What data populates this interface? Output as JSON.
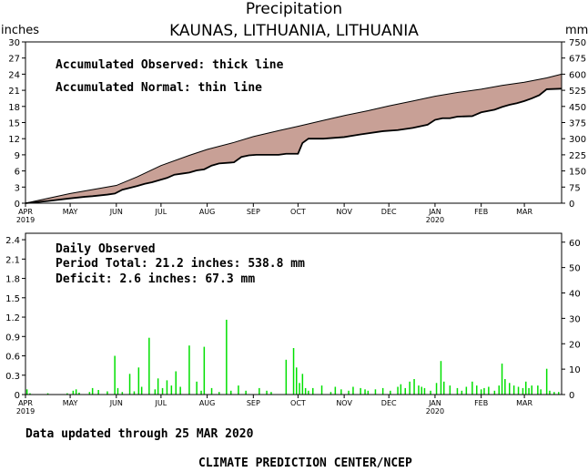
{
  "header": {
    "title": "Precipitation",
    "location": "KAUNAS,  LITHUANIA,  LITHUANIA",
    "left_unit": "inches",
    "right_unit": "mm"
  },
  "top_panel": {
    "legend_observed": "Accumulated Observed: thick line",
    "legend_normal": "Accumulated Normal: thin line"
  },
  "bottom_panel": {
    "heading": "Daily Observed",
    "period_total": "Period Total:    21.2 inches:    538.8 mm",
    "deficit": "Deficit:      2.6 inches:    67.3 mm"
  },
  "footer": {
    "updated": "Data updated through 25 MAR 2020",
    "credit": "CLIMATE PREDICTION CENTER/NCEP"
  },
  "colors": {
    "fill": "#c8a096",
    "bars": "#00e000",
    "axes": "#000000"
  },
  "chart_data": [
    {
      "type": "area",
      "x_axis": {
        "months": [
          "APR",
          "MAY",
          "JUN",
          "JUL",
          "AUG",
          "SEP",
          "OCT",
          "NOV",
          "DEC",
          "JAN",
          "FEB",
          "MAR"
        ],
        "month_start_day": [
          0,
          30,
          61,
          91,
          122,
          153,
          183,
          214,
          244,
          275,
          306,
          335
        ],
        "year_labels": [
          {
            "month": "APR",
            "text": "2019"
          },
          {
            "month": "JAN",
            "text": "2020"
          }
        ],
        "xlim_days": [
          0,
          360
        ]
      },
      "y_left": {
        "label": "inches",
        "ylim": [
          0,
          30
        ],
        "ticks": [
          "0",
          "3",
          "6",
          "9",
          "12",
          "15",
          "18",
          "21",
          "24",
          "27",
          "30"
        ]
      },
      "y_right": {
        "label": "mm",
        "ylim": [
          0,
          750
        ],
        "ticks": [
          "0",
          "75",
          "150",
          "225",
          "300",
          "375",
          "450",
          "525",
          "600",
          "675",
          "750"
        ]
      },
      "series": [
        {
          "name": "Accumulated Normal",
          "x_days": [
            0,
            30,
            61,
            75,
            91,
            110,
            122,
            140,
            153,
            170,
            183,
            200,
            214,
            230,
            244,
            260,
            275,
            290,
            306,
            320,
            335,
            350,
            360
          ],
          "y_inches": [
            0,
            1.8,
            3.3,
            4.9,
            7.0,
            8.9,
            10.0,
            11.3,
            12.4,
            13.5,
            14.3,
            15.4,
            16.3,
            17.2,
            18.1,
            19.0,
            19.9,
            20.6,
            21.2,
            21.9,
            22.5,
            23.3,
            24.0
          ]
        },
        {
          "name": "Accumulated Observed",
          "x_days": [
            0,
            15,
            30,
            40,
            45,
            55,
            60,
            65,
            75,
            80,
            85,
            90,
            95,
            100,
            105,
            110,
            115,
            120,
            125,
            130,
            140,
            145,
            150,
            155,
            170,
            175,
            183,
            186,
            190,
            200,
            214,
            225,
            240,
            250,
            260,
            270,
            275,
            280,
            285,
            290,
            300,
            306,
            315,
            320,
            325,
            330,
            335,
            340,
            345,
            350,
            360
          ],
          "y_inches": [
            0,
            0.4,
            0.9,
            1.2,
            1.3,
            1.6,
            1.8,
            2.5,
            3.2,
            3.6,
            3.9,
            4.3,
            4.7,
            5.3,
            5.5,
            5.7,
            6.1,
            6.3,
            7.0,
            7.4,
            7.6,
            8.6,
            8.9,
            9.0,
            9.0,
            9.2,
            9.2,
            11.2,
            12.0,
            12.0,
            12.3,
            12.8,
            13.4,
            13.6,
            14.0,
            14.6,
            15.5,
            15.8,
            15.8,
            16.1,
            16.2,
            16.9,
            17.4,
            17.9,
            18.3,
            18.6,
            19.0,
            19.5,
            20.1,
            21.2,
            21.3
          ]
        }
      ]
    },
    {
      "type": "bar",
      "heading": "Daily Observed",
      "y_left": {
        "label": "inches",
        "ylim": [
          0,
          2.5
        ],
        "ticks": [
          "0",
          "0.3",
          "0.6",
          "0.9",
          "1.2",
          "1.5",
          "1.8",
          "2.1",
          "2.4"
        ]
      },
      "y_right": {
        "label": "mm",
        "ylim": [
          0,
          63.5
        ],
        "ticks": [
          "0",
          "10",
          "20",
          "30",
          "40",
          "50",
          "60"
        ]
      },
      "days": [
        1,
        3,
        15,
        28,
        32,
        34,
        36,
        43,
        45,
        49,
        55,
        60,
        62,
        65,
        70,
        73,
        76,
        78,
        83,
        87,
        89,
        92,
        95,
        98,
        101,
        104,
        110,
        115,
        118,
        120,
        125,
        130,
        135,
        138,
        143,
        148,
        157,
        162,
        165,
        175,
        180,
        182,
        184,
        186,
        188,
        190,
        193,
        199,
        205,
        208,
        212,
        217,
        220,
        225,
        228,
        230,
        235,
        240,
        245,
        250,
        252,
        255,
        258,
        261,
        264,
        266,
        268,
        272,
        276,
        279,
        281,
        285,
        290,
        293,
        296,
        300,
        303,
        306,
        308,
        311,
        315,
        318,
        320,
        322,
        325,
        328,
        331,
        334,
        336,
        338,
        340,
        344,
        346,
        350,
        352,
        355,
        358
      ],
      "inches": [
        0.08,
        0.02,
        0.02,
        0.02,
        0.06,
        0.08,
        0.03,
        0.04,
        0.1,
        0.07,
        0.05,
        0.6,
        0.1,
        0.04,
        0.32,
        0.05,
        0.42,
        0.12,
        0.88,
        0.08,
        0.25,
        0.1,
        0.22,
        0.14,
        0.36,
        0.12,
        0.76,
        0.2,
        0.06,
        0.74,
        0.1,
        0.04,
        1.16,
        0.06,
        0.14,
        0.06,
        0.1,
        0.06,
        0.04,
        0.54,
        0.72,
        0.42,
        0.18,
        0.32,
        0.1,
        0.06,
        0.1,
        0.14,
        0.04,
        0.12,
        0.08,
        0.06,
        0.12,
        0.1,
        0.08,
        0.06,
        0.08,
        0.1,
        0.06,
        0.12,
        0.16,
        0.1,
        0.2,
        0.24,
        0.14,
        0.12,
        0.1,
        0.06,
        0.18,
        0.52,
        0.2,
        0.14,
        0.1,
        0.06,
        0.12,
        0.2,
        0.14,
        0.08,
        0.1,
        0.12,
        0.06,
        0.14,
        0.48,
        0.24,
        0.18,
        0.14,
        0.12,
        0.1,
        0.2,
        0.1,
        0.14,
        0.14,
        0.08,
        0.4,
        0.06,
        0.04,
        0.04
      ]
    }
  ]
}
